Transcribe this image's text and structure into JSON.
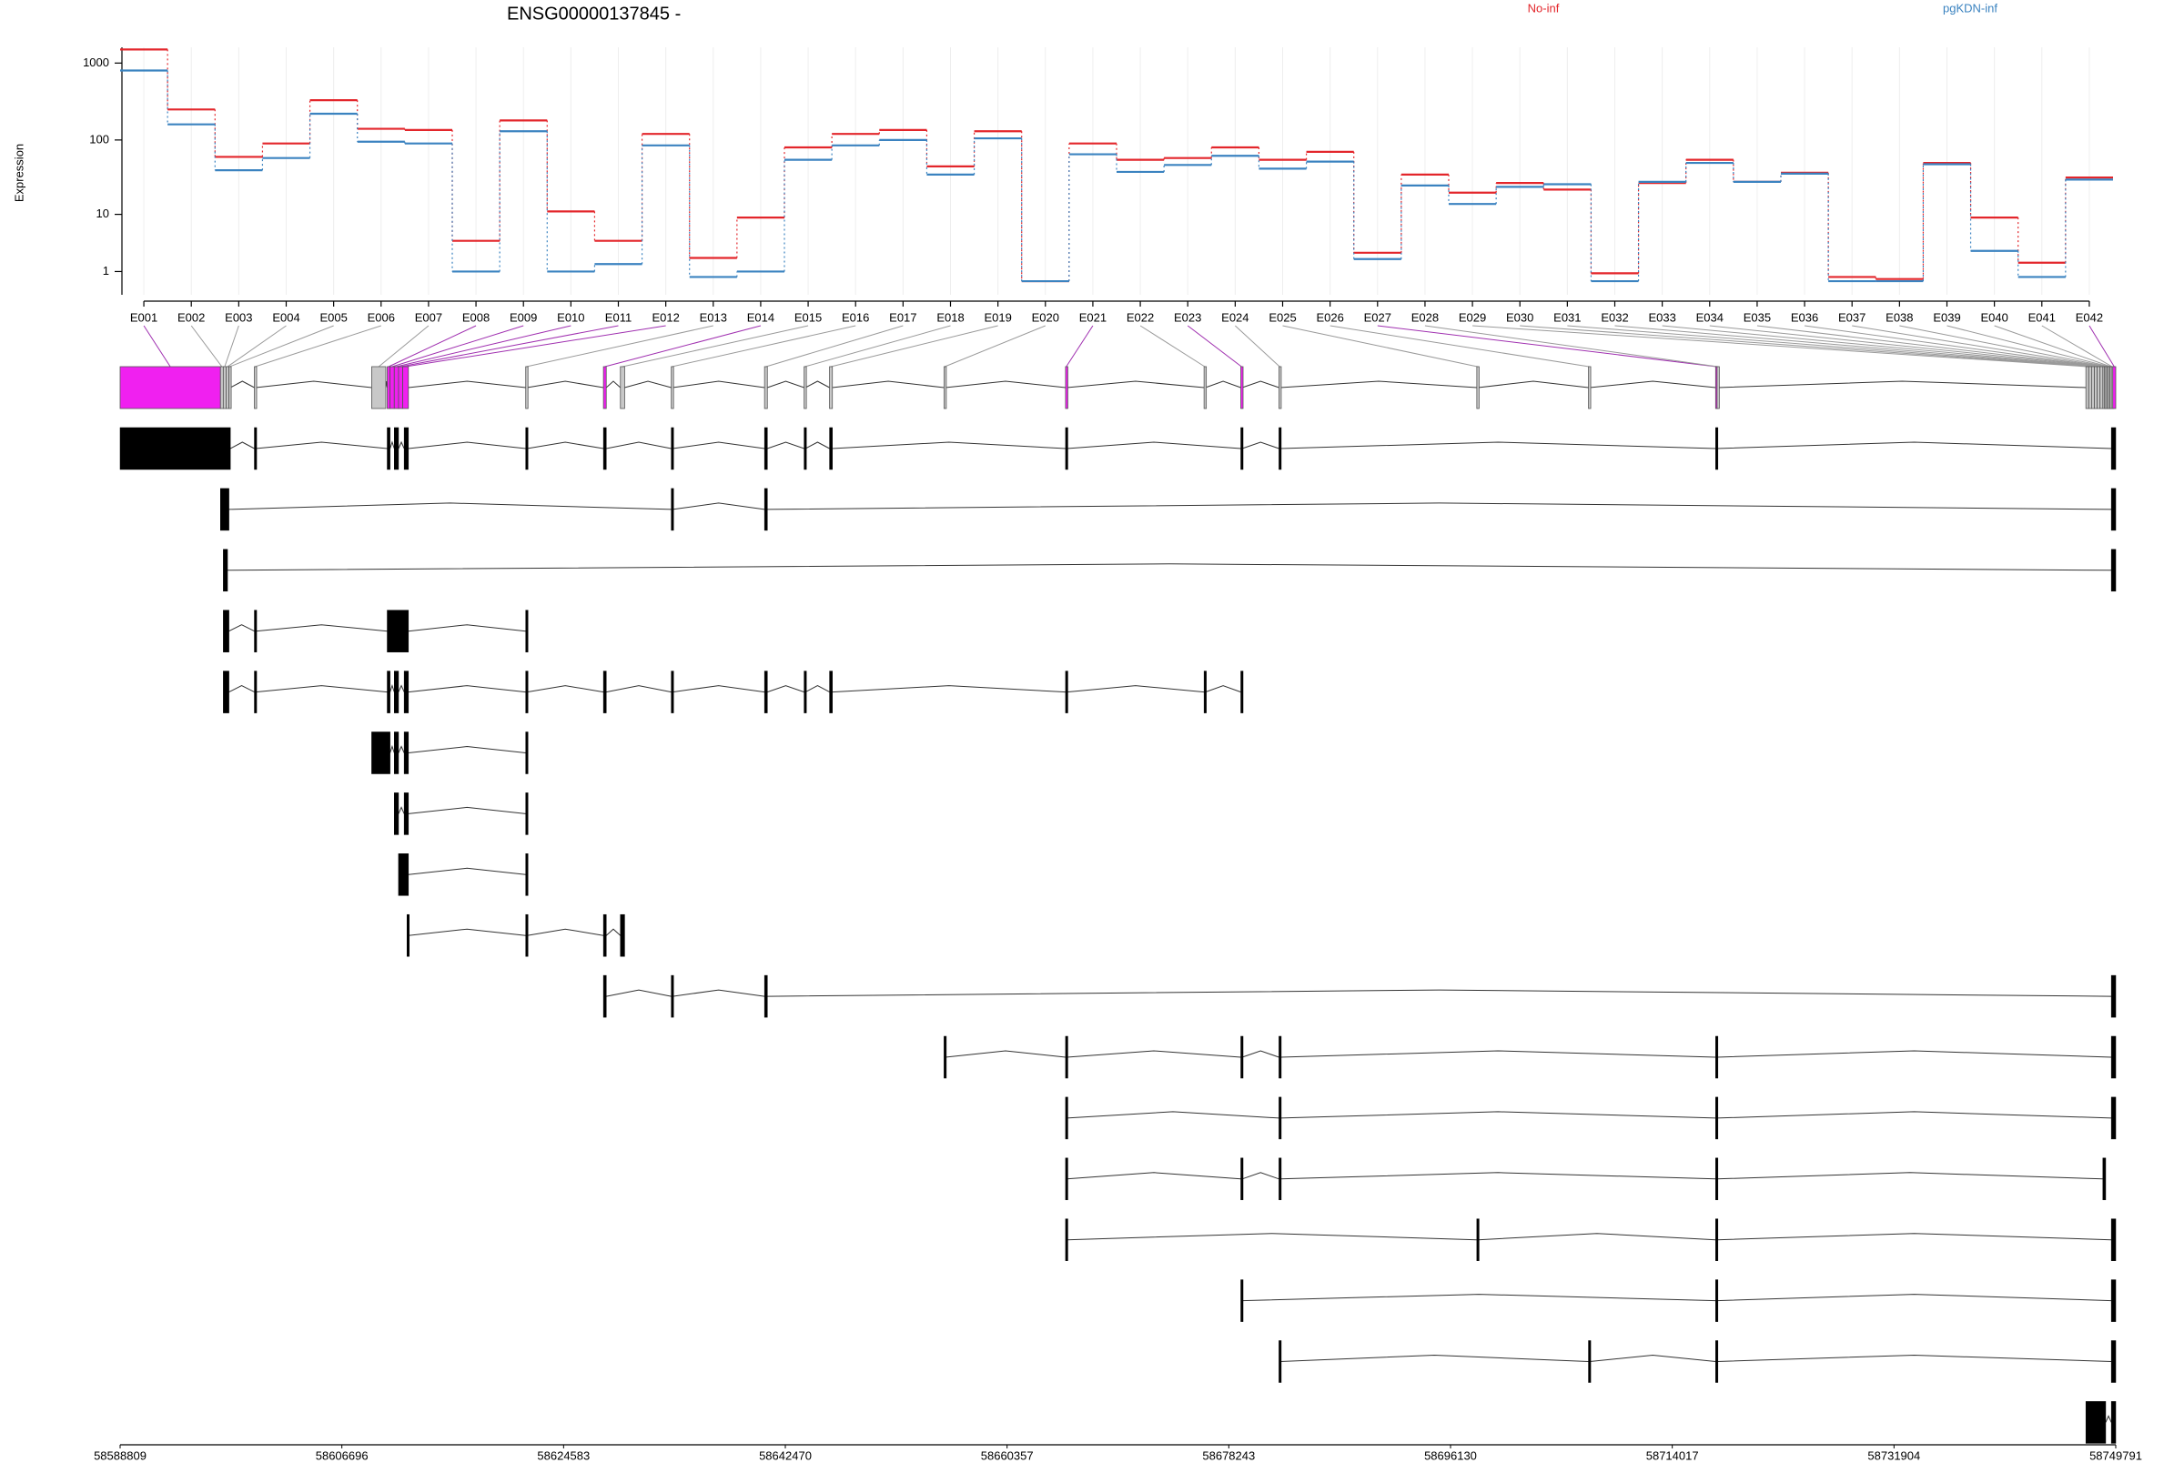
{
  "chart_data": {
    "type": "dexseq",
    "title": "ENSG00000137845 -",
    "ylabel": "Expression",
    "categories": [
      "E001",
      "E002",
      "E003",
      "E004",
      "E005",
      "E006",
      "E007",
      "E008",
      "E009",
      "E010",
      "E011",
      "E012",
      "E013",
      "E014",
      "E015",
      "E016",
      "E017",
      "E018",
      "E019",
      "E020",
      "E021",
      "E022",
      "E023",
      "E024",
      "E025",
      "E026",
      "E027",
      "E028",
      "E029",
      "E030",
      "E031",
      "E032",
      "E033",
      "E034",
      "E035",
      "E036",
      "E037",
      "E038",
      "E039",
      "E040",
      "E041",
      "E042"
    ],
    "series": [
      {
        "name": "No-inf",
        "color": "#e3262b",
        "values": [
          1500,
          250,
          60,
          90,
          330,
          140,
          135,
          4,
          180,
          11,
          4,
          120,
          2,
          9,
          80,
          120,
          135,
          45,
          130,
          0.5,
          90,
          55,
          58,
          80,
          55,
          70,
          2.5,
          35,
          20,
          27,
          22,
          0.9,
          27,
          55,
          28,
          37,
          0.7,
          0.6,
          50,
          9,
          1.6,
          32
        ]
      },
      {
        "name": "pgKDN-inf",
        "color": "#3b83c0",
        "values": [
          800,
          160,
          40,
          58,
          220,
          95,
          90,
          1,
          130,
          1,
          1.5,
          85,
          0.7,
          1,
          55,
          85,
          100,
          35,
          105,
          0.5,
          65,
          38,
          47,
          62,
          42,
          52,
          1.9,
          25,
          14,
          24,
          26,
          0.5,
          28,
          50,
          28,
          36,
          0.5,
          0.5,
          48,
          2.7,
          0.7,
          30
        ]
      }
    ],
    "yscale": "log1p",
    "ylim": [
      0,
      1600
    ],
    "yticks": [
      1,
      10,
      100,
      1000
    ],
    "grid": true,
    "significant_color": "#f020f0",
    "exon_color": "#c8c8c8",
    "exons": [
      [
        58588809,
        58596903
      ],
      [
        58596903,
        58597131
      ],
      [
        58597131,
        58597359
      ],
      [
        58597359,
        58597587
      ],
      [
        58597587,
        58597701
      ],
      [
        58599639,
        58599753
      ],
      [
        58609101,
        58610241
      ],
      [
        58610355,
        58610583
      ],
      [
        58610583,
        58610925
      ],
      [
        58610925,
        58611267
      ],
      [
        58611267,
        58611609
      ],
      [
        58611609,
        58612065
      ],
      [
        58621527,
        58621641
      ],
      [
        58627797,
        58628025
      ],
      [
        58629165,
        58629507
      ],
      [
        58633269,
        58633383
      ],
      [
        58640793,
        58641021
      ],
      [
        58643985,
        58644099
      ],
      [
        58646037,
        58646265
      ],
      [
        58655271,
        58655385
      ],
      [
        58665075,
        58665189
      ],
      [
        58676247,
        58676361
      ],
      [
        58679211,
        58679325
      ],
      [
        58682289,
        58682403
      ],
      [
        58698249,
        58698363
      ],
      [
        58707255,
        58707369
      ],
      [
        58717515,
        58717629
      ],
      [
        58717629,
        58717743
      ],
      [
        58747383,
        58747611
      ],
      [
        58747611,
        58747839
      ],
      [
        58747839,
        58748067
      ],
      [
        58748067,
        58748295
      ],
      [
        58748295,
        58748523
      ],
      [
        58748523,
        58748751
      ],
      [
        58748751,
        58748865
      ],
      [
        58748865,
        58748979
      ],
      [
        58748979,
        58749093
      ],
      [
        58749093,
        58749207
      ],
      [
        58749207,
        58749321
      ],
      [
        58749321,
        58749435
      ],
      [
        58749435,
        58749549
      ],
      [
        58749549,
        58749791
      ]
    ],
    "significant": [
      true,
      false,
      false,
      false,
      false,
      false,
      false,
      true,
      true,
      true,
      true,
      true,
      false,
      true,
      false,
      false,
      false,
      false,
      false,
      false,
      true,
      false,
      true,
      false,
      false,
      false,
      true,
      false,
      false,
      false,
      false,
      false,
      false,
      false,
      false,
      false,
      false,
      false,
      false,
      false,
      false,
      true
    ],
    "transcripts": [
      [
        [
          58588809,
          58597701
        ],
        [
          58599639,
          58599753
        ],
        [
          58610355,
          58610583
        ],
        [
          58610925,
          58611267
        ],
        [
          58611723,
          58612065
        ],
        [
          58621527,
          58621641
        ],
        [
          58627797,
          58628025
        ],
        [
          58633269,
          58633383
        ],
        [
          58640793,
          58641021
        ],
        [
          58643985,
          58644099
        ],
        [
          58646037,
          58646265
        ],
        [
          58665075,
          58665189
        ],
        [
          58679211,
          58679325
        ],
        [
          58682289,
          58682403
        ],
        [
          58717515,
          58717629
        ],
        [
          58749435,
          58749791
        ]
      ],
      [
        [
          58596903,
          58597587
        ],
        [
          58633269,
          58633383
        ],
        [
          58640793,
          58641021
        ],
        [
          58749435,
          58749791
        ]
      ],
      [
        [
          58597131,
          58597473
        ],
        [
          58749435,
          58749791
        ]
      ],
      [
        [
          58597131,
          58597587
        ],
        [
          58599639,
          58599753
        ],
        [
          58610355,
          58612065
        ],
        [
          58621527,
          58621641
        ]
      ],
      [
        [
          58597131,
          58597587
        ],
        [
          58599639,
          58599753
        ],
        [
          58610355,
          58610583
        ],
        [
          58610925,
          58611267
        ],
        [
          58611723,
          58612065
        ],
        [
          58621527,
          58621641
        ],
        [
          58627797,
          58628025
        ],
        [
          58633269,
          58633383
        ],
        [
          58640793,
          58641021
        ],
        [
          58643985,
          58644099
        ],
        [
          58646037,
          58646265
        ],
        [
          58665075,
          58665189
        ],
        [
          58676247,
          58676361
        ],
        [
          58679211,
          58679325
        ]
      ],
      [
        [
          58609101,
          58610583
        ],
        [
          58610925,
          58611267
        ],
        [
          58611723,
          58612065
        ],
        [
          58621527,
          58621641
        ]
      ],
      [
        [
          58610925,
          58611267
        ],
        [
          58611723,
          58612065
        ],
        [
          58621527,
          58621641
        ]
      ],
      [
        [
          58611267,
          58612065
        ],
        [
          58621527,
          58621641
        ]
      ],
      [
        [
          58611951,
          58612065
        ],
        [
          58621527,
          58621641
        ],
        [
          58627797,
          58628025
        ],
        [
          58629165,
          58629507
        ]
      ],
      [
        [
          58627797,
          58628025
        ],
        [
          58633269,
          58633383
        ],
        [
          58640793,
          58641021
        ],
        [
          58749435,
          58749791
        ]
      ],
      [
        [
          58655271,
          58655385
        ],
        [
          58665075,
          58665189
        ],
        [
          58679211,
          58679325
        ],
        [
          58682289,
          58682403
        ],
        [
          58717515,
          58717629
        ],
        [
          58749435,
          58749791
        ]
      ],
      [
        [
          58665075,
          58665189
        ],
        [
          58682289,
          58682403
        ],
        [
          58717515,
          58717629
        ],
        [
          58749435,
          58749791
        ]
      ],
      [
        [
          58665075,
          58665189
        ],
        [
          58679211,
          58679325
        ],
        [
          58682289,
          58682403
        ],
        [
          58717515,
          58717629
        ],
        [
          58748751,
          58748979
        ]
      ],
      [
        [
          58665075,
          58665189
        ],
        [
          58698249,
          58698363
        ],
        [
          58717515,
          58717629
        ],
        [
          58749435,
          58749791
        ]
      ],
      [
        [
          58679211,
          58679325
        ],
        [
          58717515,
          58717629
        ],
        [
          58749435,
          58749791
        ]
      ],
      [
        [
          58682289,
          58682403
        ],
        [
          58707255,
          58707369
        ],
        [
          58717515,
          58717629
        ],
        [
          58749435,
          58749791
        ]
      ],
      [
        [
          58747383,
          58748979
        ],
        [
          58749435,
          58749791
        ]
      ]
    ],
    "xlim": [
      58588809,
      58749791
    ],
    "xticks": [
      58588809,
      58606696,
      58624583,
      58642470,
      58660357,
      58678243,
      58696130,
      58714017,
      58731904,
      58749791
    ]
  }
}
